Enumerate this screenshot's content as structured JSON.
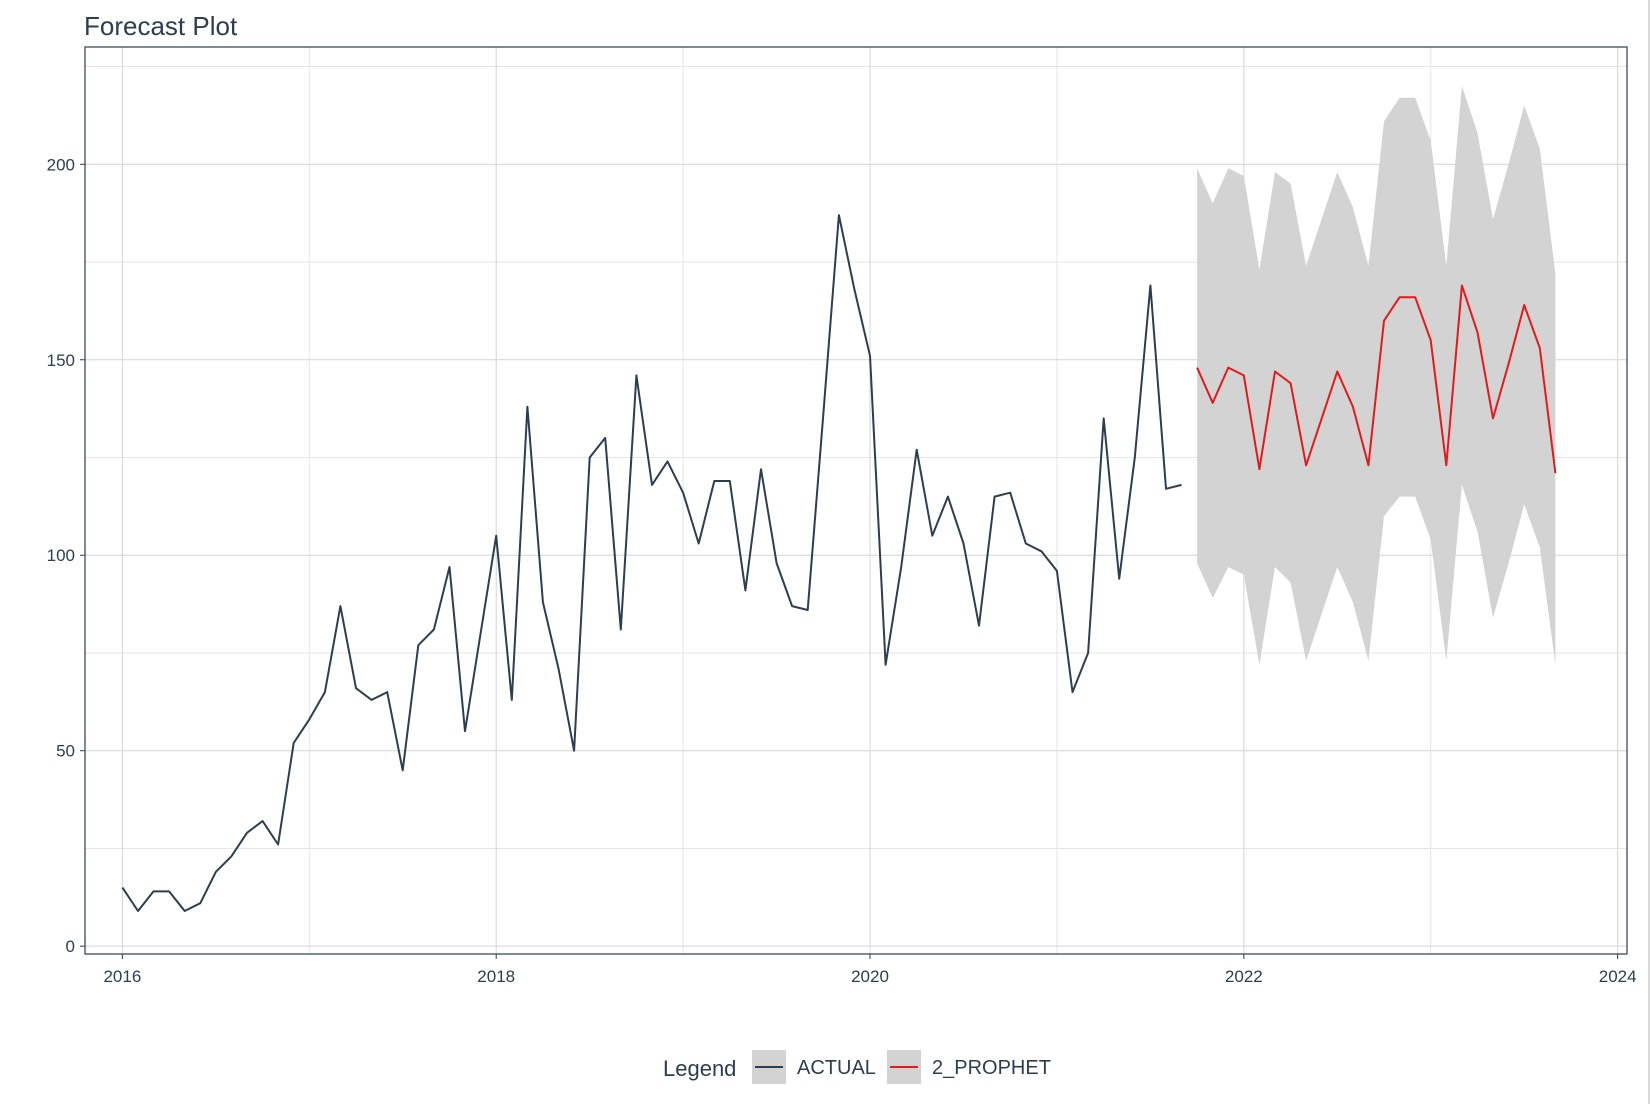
{
  "chart_data": {
    "type": "line",
    "title": "Forecast Plot",
    "xlabel": "",
    "ylabel": "",
    "xlim": [
      2015.8,
      2024.05
    ],
    "ylim": [
      -2,
      230
    ],
    "x_ticks": [
      "2016",
      "2018",
      "2020",
      "2022",
      "2024"
    ],
    "y_ticks": [
      "0",
      "50",
      "100",
      "150",
      "200"
    ],
    "grid": true,
    "legend": {
      "title": "Legend",
      "position": "bottom",
      "entries": [
        "ACTUAL",
        "2_PROPHET"
      ]
    },
    "series": [
      {
        "name": "ACTUAL",
        "color": "#2c3e50",
        "points": [
          [
            "2016-01",
            15
          ],
          [
            "2016-02",
            9
          ],
          [
            "2016-03",
            14
          ],
          [
            "2016-04",
            14
          ],
          [
            "2016-05",
            9
          ],
          [
            "2016-06",
            11
          ],
          [
            "2016-07",
            19
          ],
          [
            "2016-08",
            23
          ],
          [
            "2016-09",
            29
          ],
          [
            "2016-10",
            32
          ],
          [
            "2016-11",
            26
          ],
          [
            "2016-12",
            52
          ],
          [
            "2017-01",
            58
          ],
          [
            "2017-02",
            65
          ],
          [
            "2017-03",
            87
          ],
          [
            "2017-04",
            66
          ],
          [
            "2017-05",
            63
          ],
          [
            "2017-06",
            65
          ],
          [
            "2017-07",
            45
          ],
          [
            "2017-08",
            77
          ],
          [
            "2017-09",
            81
          ],
          [
            "2017-10",
            97
          ],
          [
            "2017-11",
            55
          ],
          [
            "2017-12",
            80
          ],
          [
            "2018-01",
            105
          ],
          [
            "2018-02",
            63
          ],
          [
            "2018-03",
            138
          ],
          [
            "2018-04",
            88
          ],
          [
            "2018-05",
            71
          ],
          [
            "2018-06",
            50
          ],
          [
            "2018-07",
            125
          ],
          [
            "2018-08",
            130
          ],
          [
            "2018-09",
            81
          ],
          [
            "2018-10",
            146
          ],
          [
            "2018-11",
            118
          ],
          [
            "2018-12",
            124
          ],
          [
            "2019-01",
            116
          ],
          [
            "2019-02",
            103
          ],
          [
            "2019-03",
            119
          ],
          [
            "2019-04",
            119
          ],
          [
            "2019-05",
            91
          ],
          [
            "2019-06",
            122
          ],
          [
            "2019-07",
            98
          ],
          [
            "2019-08",
            87
          ],
          [
            "2019-09",
            86
          ],
          [
            "2019-10",
            136
          ],
          [
            "2019-11",
            187
          ],
          [
            "2019-12",
            168
          ],
          [
            "2020-01",
            151
          ],
          [
            "2020-02",
            72
          ],
          [
            "2020-03",
            97
          ],
          [
            "2020-04",
            127
          ],
          [
            "2020-05",
            105
          ],
          [
            "2020-06",
            115
          ],
          [
            "2020-07",
            103
          ],
          [
            "2020-08",
            82
          ],
          [
            "2020-09",
            115
          ],
          [
            "2020-10",
            116
          ],
          [
            "2020-11",
            103
          ],
          [
            "2020-12",
            101
          ],
          [
            "2021-01",
            96
          ],
          [
            "2021-02",
            65
          ],
          [
            "2021-03",
            75
          ],
          [
            "2021-04",
            135
          ],
          [
            "2021-05",
            94
          ],
          [
            "2021-06",
            125
          ],
          [
            "2021-07",
            169
          ],
          [
            "2021-08",
            117
          ],
          [
            "2021-09",
            118
          ]
        ]
      },
      {
        "name": "2_PROPHET",
        "color": "#e31a1c",
        "band_color": "#d3d3d3",
        "points": [
          [
            "2021-10",
            148,
            98,
            199
          ],
          [
            "2021-11",
            139,
            89,
            190
          ],
          [
            "2021-12",
            148,
            97,
            199
          ],
          [
            "2022-01",
            146,
            95,
            197
          ],
          [
            "2022-02",
            122,
            72,
            173
          ],
          [
            "2022-03",
            147,
            97,
            198
          ],
          [
            "2022-04",
            144,
            93,
            195
          ],
          [
            "2022-05",
            123,
            73,
            174
          ],
          [
            "2022-06",
            135,
            85,
            186
          ],
          [
            "2022-07",
            147,
            97,
            198
          ],
          [
            "2022-08",
            138,
            88,
            189
          ],
          [
            "2022-09",
            123,
            73,
            174
          ],
          [
            "2022-10",
            160,
            110,
            211
          ],
          [
            "2022-11",
            166,
            115,
            217
          ],
          [
            "2022-12",
            166,
            115,
            217
          ],
          [
            "2023-01",
            155,
            104,
            206
          ],
          [
            "2023-02",
            123,
            73,
            174
          ],
          [
            "2023-03",
            169,
            118,
            220
          ],
          [
            "2023-04",
            157,
            106,
            208
          ],
          [
            "2023-05",
            135,
            84,
            186
          ],
          [
            "2023-06",
            149,
            98,
            200
          ],
          [
            "2023-07",
            164,
            113,
            215
          ],
          [
            "2023-08",
            153,
            102,
            204
          ],
          [
            "2023-09",
            121,
            72,
            172
          ]
        ]
      }
    ]
  }
}
